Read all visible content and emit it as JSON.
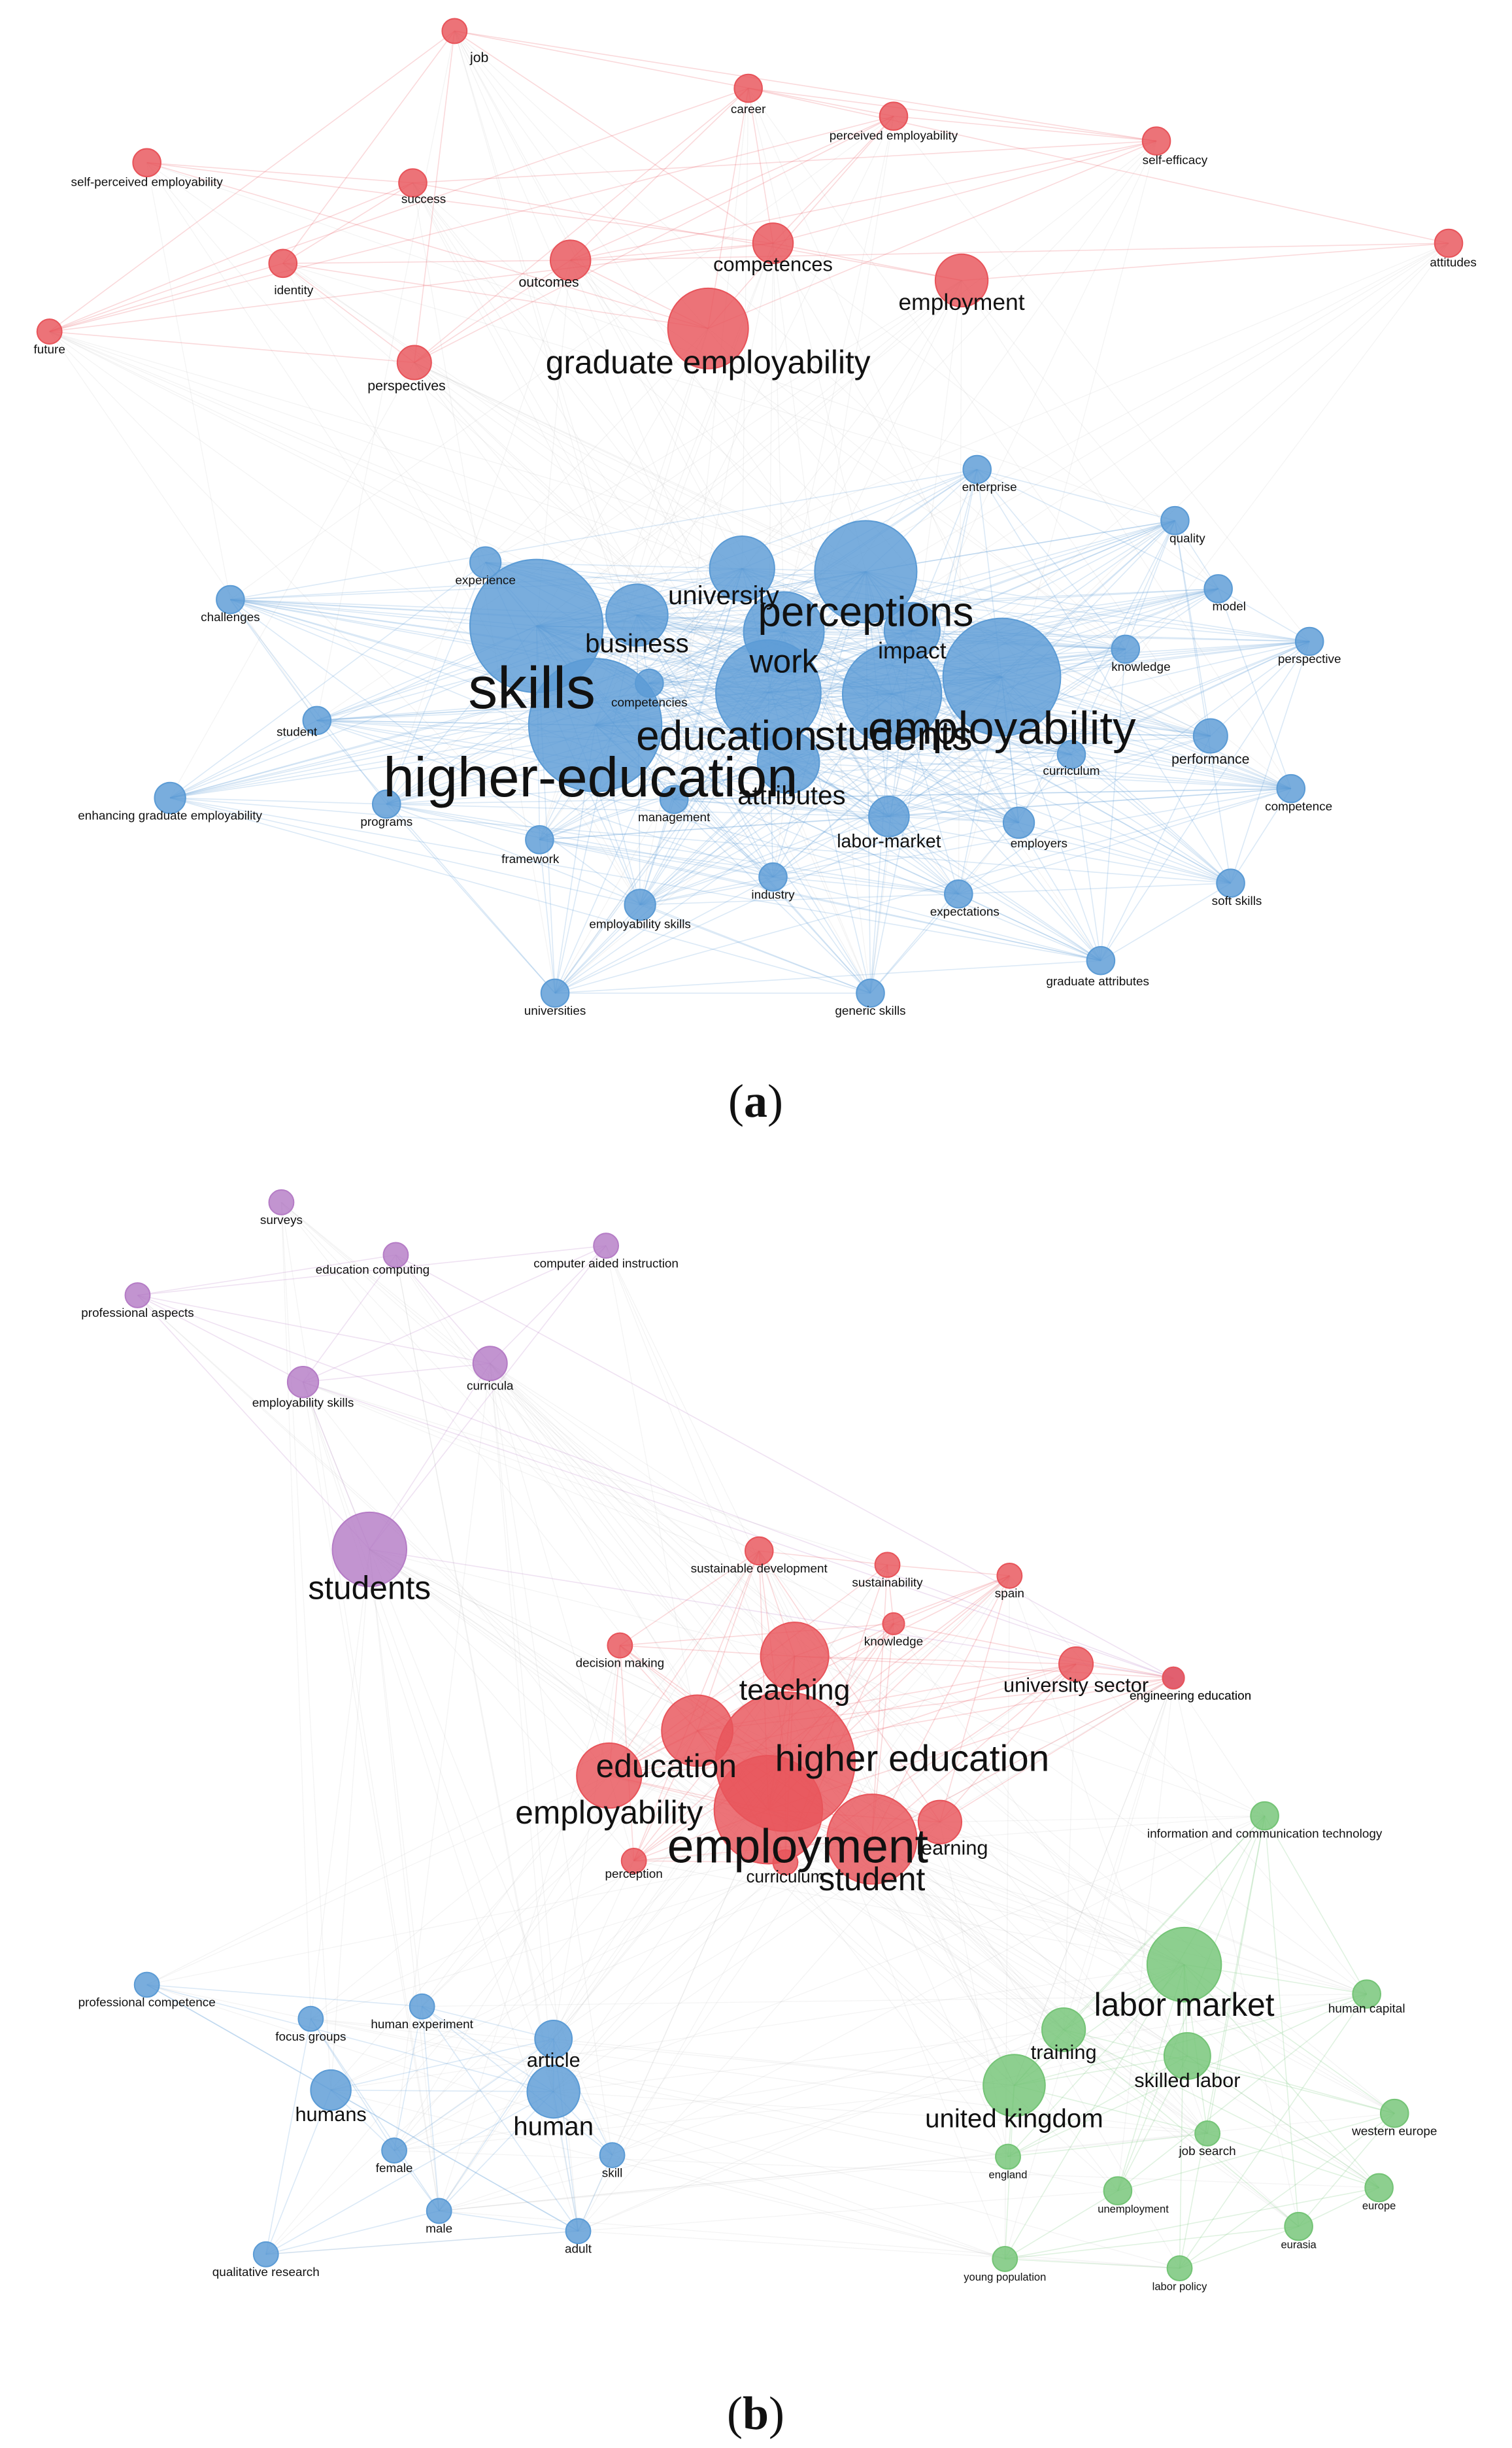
{
  "figure": {
    "panels": [
      {
        "id": "a",
        "caption": "(a)",
        "nodes": [
          {
            "id": "job",
            "label": "job",
            "cluster": "red",
            "weight": 1
          },
          {
            "id": "career",
            "label": "career",
            "cluster": "red",
            "weight": 1
          },
          {
            "id": "perceived employability",
            "label": "perceived employability",
            "cluster": "red",
            "weight": 1
          },
          {
            "id": "self-efficacy",
            "label": "self-efficacy",
            "cluster": "red",
            "weight": 1
          },
          {
            "id": "self-perceived employability",
            "label": "self-perceived employability",
            "cluster": "red",
            "weight": 1
          },
          {
            "id": "success",
            "label": "success",
            "cluster": "red",
            "weight": 1
          },
          {
            "id": "competences",
            "label": "competences",
            "cluster": "red",
            "weight": 2
          },
          {
            "id": "attitudes",
            "label": "attitudes",
            "cluster": "red",
            "weight": 1
          },
          {
            "id": "identity",
            "label": "identity",
            "cluster": "red",
            "weight": 1
          },
          {
            "id": "outcomes",
            "label": "outcomes",
            "cluster": "red",
            "weight": 2
          },
          {
            "id": "employment",
            "label": "employment",
            "cluster": "red",
            "weight": 3
          },
          {
            "id": "future",
            "label": "future",
            "cluster": "red",
            "weight": 1
          },
          {
            "id": "graduate employability",
            "label": "graduate employability",
            "cluster": "red",
            "weight": 4
          },
          {
            "id": "perspectives",
            "label": "perspectives",
            "cluster": "red",
            "weight": 2
          },
          {
            "id": "enterprise",
            "label": "enterprise",
            "cluster": "blue",
            "weight": 1
          },
          {
            "id": "quality",
            "label": "quality",
            "cluster": "blue",
            "weight": 1
          },
          {
            "id": "experience",
            "label": "experience",
            "cluster": "blue",
            "weight": 1
          },
          {
            "id": "university",
            "label": "university",
            "cluster": "blue",
            "weight": 4
          },
          {
            "id": "model",
            "label": "model",
            "cluster": "blue",
            "weight": 1
          },
          {
            "id": "challenges",
            "label": "challenges",
            "cluster": "blue",
            "weight": 1
          },
          {
            "id": "perceptions",
            "label": "perceptions",
            "cluster": "blue",
            "weight": 6
          },
          {
            "id": "business",
            "label": "business",
            "cluster": "blue",
            "weight": 3
          },
          {
            "id": "impact",
            "label": "impact",
            "cluster": "blue",
            "weight": 3
          },
          {
            "id": "perspective",
            "label": "perspective",
            "cluster": "blue",
            "weight": 1
          },
          {
            "id": "knowledge",
            "label": "knowledge",
            "cluster": "blue",
            "weight": 1
          },
          {
            "id": "skills",
            "label": "skills",
            "cluster": "blue",
            "weight": 8
          },
          {
            "id": "work",
            "label": "work",
            "cluster": "blue",
            "weight": 4
          },
          {
            "id": "competencies",
            "label": "competencies",
            "cluster": "blue",
            "weight": 2
          },
          {
            "id": "student",
            "label": "student",
            "cluster": "blue",
            "weight": 1
          },
          {
            "id": "education",
            "label": "education",
            "cluster": "blue",
            "weight": 6
          },
          {
            "id": "students",
            "label": "students",
            "cluster": "blue",
            "weight": 5
          },
          {
            "id": "employability",
            "label": "employability",
            "cluster": "blue",
            "weight": 7
          },
          {
            "id": "curriculum",
            "label": "curriculum",
            "cluster": "blue",
            "weight": 1
          },
          {
            "id": "performance",
            "label": "performance",
            "cluster": "blue",
            "weight": 2
          },
          {
            "id": "higher-education",
            "label": "higher-education",
            "cluster": "blue",
            "weight": 7
          },
          {
            "id": "attributes",
            "label": "attributes",
            "cluster": "blue",
            "weight": 2
          },
          {
            "id": "enhancing graduate employability",
            "label": "enhancing graduate employability",
            "cluster": "blue",
            "weight": 1
          },
          {
            "id": "programs",
            "label": "programs",
            "cluster": "blue",
            "weight": 1
          },
          {
            "id": "management",
            "label": "management",
            "cluster": "blue",
            "weight": 1
          },
          {
            "id": "competence",
            "label": "competence",
            "cluster": "blue",
            "weight": 1
          },
          {
            "id": "labor-market",
            "label": "labor-market",
            "cluster": "blue",
            "weight": 2
          },
          {
            "id": "employers",
            "label": "employers",
            "cluster": "blue",
            "weight": 1
          },
          {
            "id": "framework",
            "label": "framework",
            "cluster": "blue",
            "weight": 1
          },
          {
            "id": "industry",
            "label": "industry",
            "cluster": "blue",
            "weight": 1
          },
          {
            "id": "expectations",
            "label": "expectations",
            "cluster": "blue",
            "weight": 1
          },
          {
            "id": "soft skills",
            "label": "soft skills",
            "cluster": "blue",
            "weight": 1
          },
          {
            "id": "employability skills",
            "label": "employability skills",
            "cluster": "blue",
            "weight": 1
          },
          {
            "id": "graduate attributes",
            "label": "graduate attributes",
            "cluster": "blue",
            "weight": 1
          },
          {
            "id": "universities",
            "label": "universities",
            "cluster": "blue",
            "weight": 1
          },
          {
            "id": "generic skills",
            "label": "generic skills",
            "cluster": "blue",
            "weight": 1
          }
        ]
      },
      {
        "id": "b",
        "caption": "(b)",
        "nodes": [
          {
            "id": "surveys",
            "label": "surveys",
            "cluster": "purple",
            "weight": 1
          },
          {
            "id": "education computing",
            "label": "education computing",
            "cluster": "purple",
            "weight": 1
          },
          {
            "id": "computer aided instruction",
            "label": "computer aided instruction",
            "cluster": "purple",
            "weight": 1
          },
          {
            "id": "engineering education",
            "label": "engineering education",
            "cluster": "purple",
            "weight": 2
          },
          {
            "id": "professional aspects",
            "label": "professional aspects",
            "cluster": "purple",
            "weight": 1
          },
          {
            "id": "employability skills",
            "label": "employability skills",
            "cluster": "purple",
            "weight": 2
          },
          {
            "id": "curricula",
            "label": "curricula",
            "cluster": "purple",
            "weight": 2
          },
          {
            "id": "students",
            "label": "students",
            "cluster": "purple",
            "weight": 5
          },
          {
            "id": "sustainable development",
            "label": "sustainable development",
            "cluster": "red",
            "weight": 1
          },
          {
            "id": "sustainability",
            "label": "sustainability",
            "cluster": "red",
            "weight": 1
          },
          {
            "id": "spain",
            "label": "spain",
            "cluster": "red",
            "weight": 1
          },
          {
            "id": "knowledge",
            "label": "knowledge",
            "cluster": "red",
            "weight": 1
          },
          {
            "id": "decision making",
            "label": "decision making",
            "cluster": "red",
            "weight": 1
          },
          {
            "id": "teaching",
            "label": "teaching",
            "cluster": "red",
            "weight": 3
          },
          {
            "id": "university sector",
            "label": "university sector",
            "cluster": "red",
            "weight": 2
          },
          {
            "id": "engineering education",
            "label": "engineering education",
            "cluster": "red",
            "weight": 1
          },
          {
            "id": "education",
            "label": "education",
            "cluster": "red",
            "weight": 4
          },
          {
            "id": "higher education",
            "label": "higher education",
            "cluster": "red",
            "weight": 5
          },
          {
            "id": "employability",
            "label": "employability",
            "cluster": "red",
            "weight": 4
          },
          {
            "id": "employment",
            "label": "employment",
            "cluster": "red",
            "weight": 8
          },
          {
            "id": "learning",
            "label": "learning",
            "cluster": "red",
            "weight": 2
          },
          {
            "id": "perception",
            "label": "perception",
            "cluster": "red",
            "weight": 1
          },
          {
            "id": "curriculum",
            "label": "curriculum",
            "cluster": "red",
            "weight": 1
          },
          {
            "id": "student",
            "label": "student",
            "cluster": "red",
            "weight": 5
          },
          {
            "id": "information and communication technology",
            "label": "information and communication technology",
            "cluster": "green",
            "weight": 1
          },
          {
            "id": "labor market",
            "label": "labor market",
            "cluster": "green",
            "weight": 5
          },
          {
            "id": "human capital",
            "label": "human capital",
            "cluster": "green",
            "weight": 1
          },
          {
            "id": "training",
            "label": "training",
            "cluster": "green",
            "weight": 2
          },
          {
            "id": "skilled labor",
            "label": "skilled labor",
            "cluster": "green",
            "weight": 2
          },
          {
            "id": "united kingdom",
            "label": "united kingdom",
            "cluster": "green",
            "weight": 4
          },
          {
            "id": "western europe",
            "label": "western europe",
            "cluster": "green",
            "weight": 1
          },
          {
            "id": "job search",
            "label": "job search",
            "cluster": "green",
            "weight": 1
          },
          {
            "id": "england",
            "label": "england",
            "cluster": "green",
            "weight": 1
          },
          {
            "id": "unemployment",
            "label": "unemployment",
            "cluster": "green",
            "weight": 1
          },
          {
            "id": "europe",
            "label": "europe",
            "cluster": "green",
            "weight": 1
          },
          {
            "id": "eurasia",
            "label": "eurasia",
            "cluster": "green",
            "weight": 1
          },
          {
            "id": "young population",
            "label": "young population",
            "cluster": "green",
            "weight": 1
          },
          {
            "id": "labor policy",
            "label": "labor policy",
            "cluster": "green",
            "weight": 1
          },
          {
            "id": "professional competence",
            "label": "professional competence",
            "cluster": "blue",
            "weight": 1
          },
          {
            "id": "focus groups",
            "label": "focus groups",
            "cluster": "blue",
            "weight": 1
          },
          {
            "id": "human experiment",
            "label": "human experiment",
            "cluster": "blue",
            "weight": 1
          },
          {
            "id": "article",
            "label": "article",
            "cluster": "blue",
            "weight": 2
          },
          {
            "id": "humans",
            "label": "humans",
            "cluster": "blue",
            "weight": 2
          },
          {
            "id": "human",
            "label": "human",
            "cluster": "blue",
            "weight": 4
          },
          {
            "id": "female",
            "label": "female",
            "cluster": "blue",
            "weight": 1
          },
          {
            "id": "skill",
            "label": "skill",
            "cluster": "blue",
            "weight": 1
          },
          {
            "id": "male",
            "label": "male",
            "cluster": "blue",
            "weight": 1
          },
          {
            "id": "adult",
            "label": "adult",
            "cluster": "blue",
            "weight": 1
          },
          {
            "id": "qualitative research",
            "label": "qualitative research",
            "cluster": "blue",
            "weight": 1
          }
        ]
      }
    ],
    "colors": {
      "red": "#e8545a",
      "blue": "#5b9bd5",
      "purple": "#b57cc6",
      "green": "#74c476"
    }
  }
}
